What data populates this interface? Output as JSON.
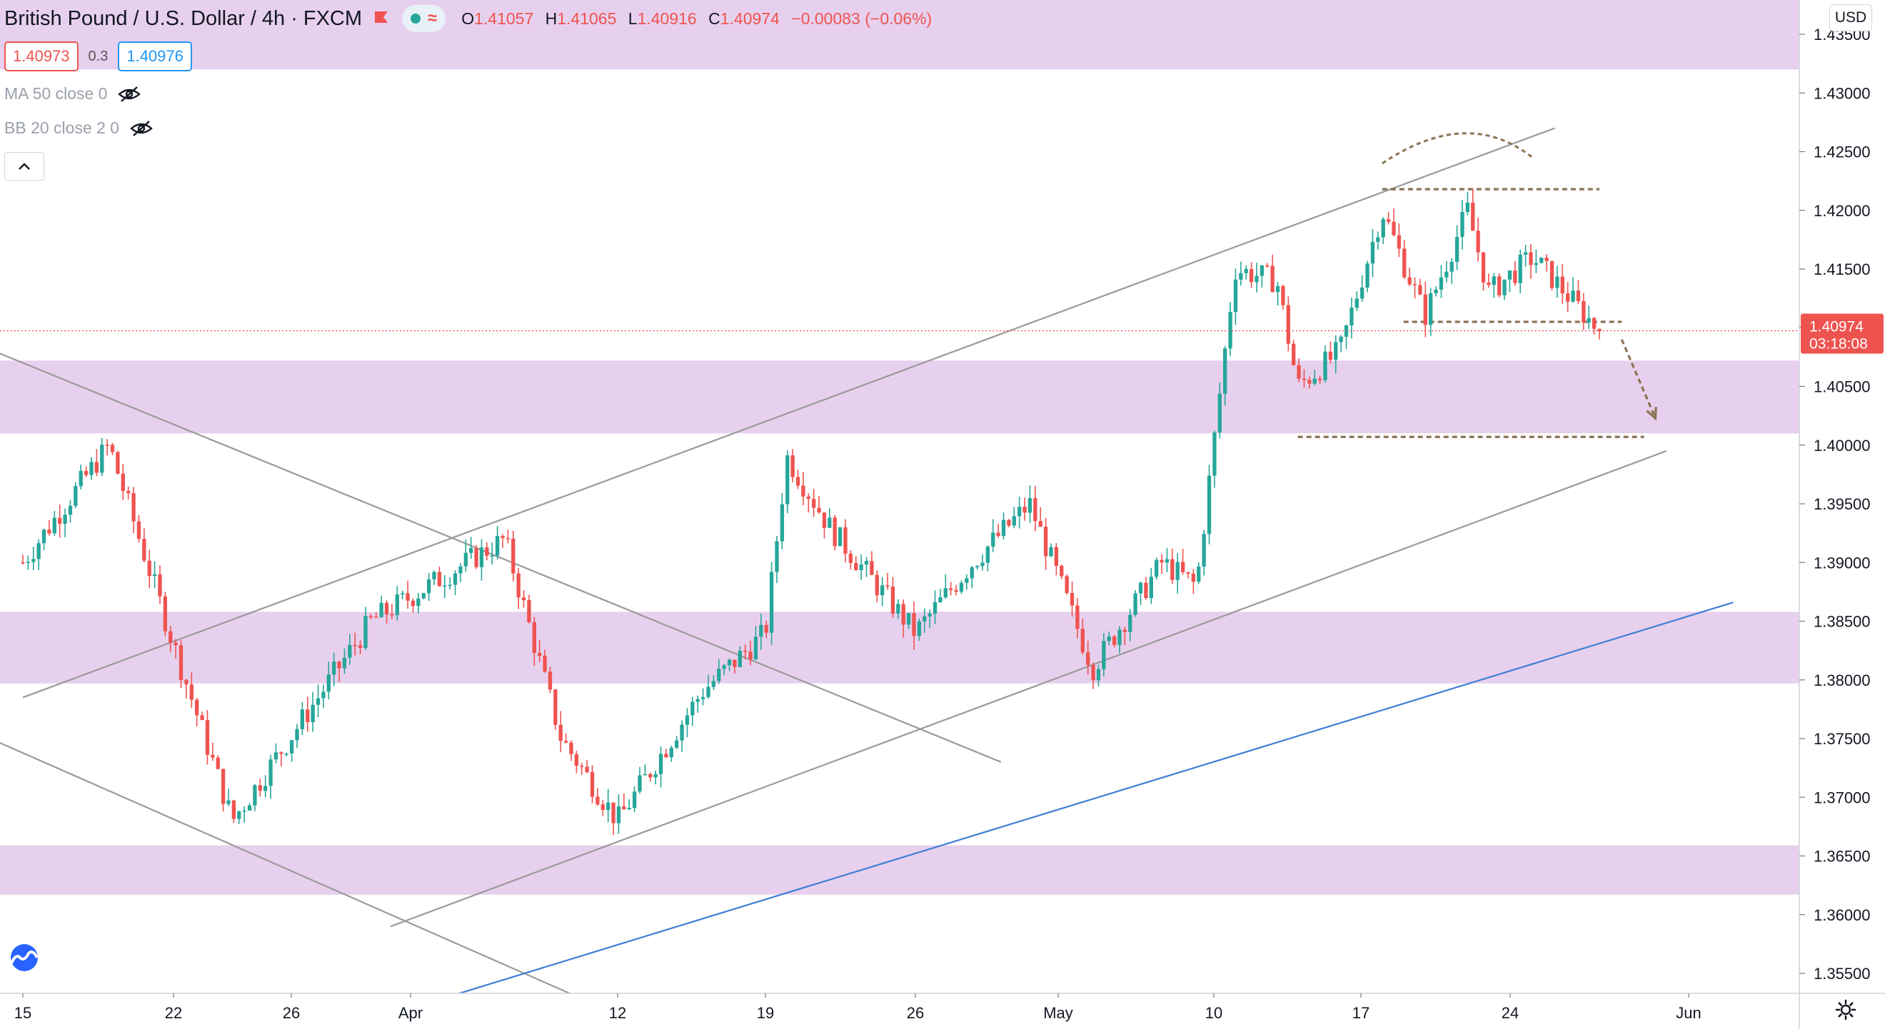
{
  "header": {
    "symbol": "British Pound / U.S. Dollar",
    "interval": "4h",
    "exchange": "FXCM",
    "ohlc": {
      "o_label": "O",
      "o": "1.41057",
      "h_label": "H",
      "h": "1.41065",
      "l_label": "L",
      "l": "1.40916",
      "c_label": "C",
      "c": "1.40974",
      "change": "−0.00083 (−0.06%)"
    },
    "bid": "1.40973",
    "spread": "0.3",
    "ask": "1.40976",
    "indicators": [
      {
        "label": "MA 50 close 0"
      },
      {
        "label": "BB 20 close 2 0"
      }
    ]
  },
  "currency": "USD",
  "chart_data": {
    "type": "candlestick",
    "symbol": "GBPUSD",
    "interval": "4h",
    "ylim": [
      1.3515,
      1.4385
    ],
    "y_ticks": [
      "1.35500",
      "1.36000",
      "1.36500",
      "1.37000",
      "1.37500",
      "1.38000",
      "1.38500",
      "1.39000",
      "1.39500",
      "1.40000",
      "1.40500",
      "1.41000",
      "1.41500",
      "1.42000",
      "1.42500",
      "1.43000",
      "1.43500"
    ],
    "x_ticks": [
      "15",
      "22",
      "26",
      "Apr",
      "12",
      "19",
      "26",
      "May",
      "10",
      "17",
      "24",
      "Jun"
    ],
    "current_price": "1.40974",
    "countdown": "03:18:08",
    "colors": {
      "up": "#26a69a",
      "down": "#ef5350",
      "zone": "#e1c4e9",
      "trendline": "#9a9a9a",
      "blue_line": "#3f7fd6",
      "annotation": "#8b7355",
      "current_price": "#ef5350"
    },
    "zones": [
      {
        "from": 1.432,
        "to": 1.4385
      },
      {
        "from": 1.401,
        "to": 1.4072
      },
      {
        "from": 1.3797,
        "to": 1.3858
      },
      {
        "from": 1.3617,
        "to": 1.3659
      }
    ],
    "anchors": [
      {
        "x": "Mar 15",
        "y": 1.39
      },
      {
        "x": "Mar 19",
        "y": 1.4
      },
      {
        "x": "Mar 22",
        "y": 1.383
      },
      {
        "x": "Mar 24",
        "y": 1.368
      },
      {
        "x": "Mar 30",
        "y": 1.385
      },
      {
        "x": "Apr 6",
        "y": 1.392
      },
      {
        "x": "Apr 9",
        "y": 1.375
      },
      {
        "x": "Apr 12",
        "y": 1.368
      },
      {
        "x": "Apr 16",
        "y": 1.379
      },
      {
        "x": "Apr 19",
        "y": 1.384
      },
      {
        "x": "Apr 20",
        "y": 1.399
      },
      {
        "x": "Apr 22",
        "y": 1.393
      },
      {
        "x": "Apr 26",
        "y": 1.384
      },
      {
        "x": "Apr 28",
        "y": 1.39
      },
      {
        "x": "Apr 30",
        "y": 1.395
      },
      {
        "x": "May 3",
        "y": 1.381
      },
      {
        "x": "May 7",
        "y": 1.39
      },
      {
        "x": "May 9",
        "y": 1.388
      },
      {
        "x": "May 11",
        "y": 1.415
      },
      {
        "x": "May 13",
        "y": 1.414
      },
      {
        "x": "May 14",
        "y": 1.405
      },
      {
        "x": "May 16",
        "y": 1.408
      },
      {
        "x": "May 18",
        "y": 1.42
      },
      {
        "x": "May 20",
        "y": 1.411
      },
      {
        "x": "May 22",
        "y": 1.42
      },
      {
        "x": "May 23",
        "y": 1.413
      },
      {
        "x": "May 25",
        "y": 1.416
      },
      {
        "x": "May 26",
        "y": 1.414
      },
      {
        "x": "May 28",
        "y": 1.4097
      }
    ],
    "trendlines": [
      {
        "kind": "solid",
        "color": "trendline",
        "from": {
          "x": "Mar 15",
          "y": 1.3785
        },
        "to": {
          "x": "May 26",
          "y": 1.427
        }
      },
      {
        "kind": "solid",
        "color": "trendline",
        "from": {
          "x": "Mar 31",
          "y": 1.359
        },
        "to": {
          "x": "May 31",
          "y": 1.3995
        }
      },
      {
        "kind": "solid",
        "color": "trendline",
        "from": {
          "x": "Mar 11",
          "y": 1.41
        },
        "to": {
          "x": "Apr 29",
          "y": 1.373
        }
      },
      {
        "kind": "solid",
        "color": "trendline",
        "from": {
          "x": "Mar 11",
          "y": 1.377
        },
        "to": {
          "x": "Apr 12",
          "y": 1.3515
        }
      },
      {
        "kind": "solid",
        "color": "blue_line",
        "from": {
          "x": "Mar 31",
          "y": 1.3515
        },
        "to": {
          "x": "Jun 3",
          "y": 1.3866
        }
      },
      {
        "kind": "dashed",
        "color": "annotation",
        "from": {
          "x": "May 18",
          "y": 1.4218
        },
        "to": {
          "x": "May 28",
          "y": 1.4218
        }
      },
      {
        "kind": "dashed",
        "color": "annotation",
        "from": {
          "x": "May 19",
          "y": 1.4105
        },
        "to": {
          "x": "May 29",
          "y": 1.4105
        }
      },
      {
        "kind": "dashed",
        "color": "annotation",
        "from": {
          "x": "May 14",
          "y": 1.4007
        },
        "to": {
          "x": "May 30",
          "y": 1.4007
        }
      }
    ],
    "annotations": [
      {
        "kind": "arc",
        "from": {
          "x": "May 18",
          "y": 1.424
        },
        "peak": {
          "x": "May 22",
          "y": 1.4268
        },
        "to": {
          "x": "May 25",
          "y": 1.4245
        }
      },
      {
        "kind": "arrow",
        "from": {
          "x": "May 29",
          "y": 1.409
        },
        "to": {
          "x": "May 30",
          "y": 1.4018
        }
      }
    ]
  }
}
